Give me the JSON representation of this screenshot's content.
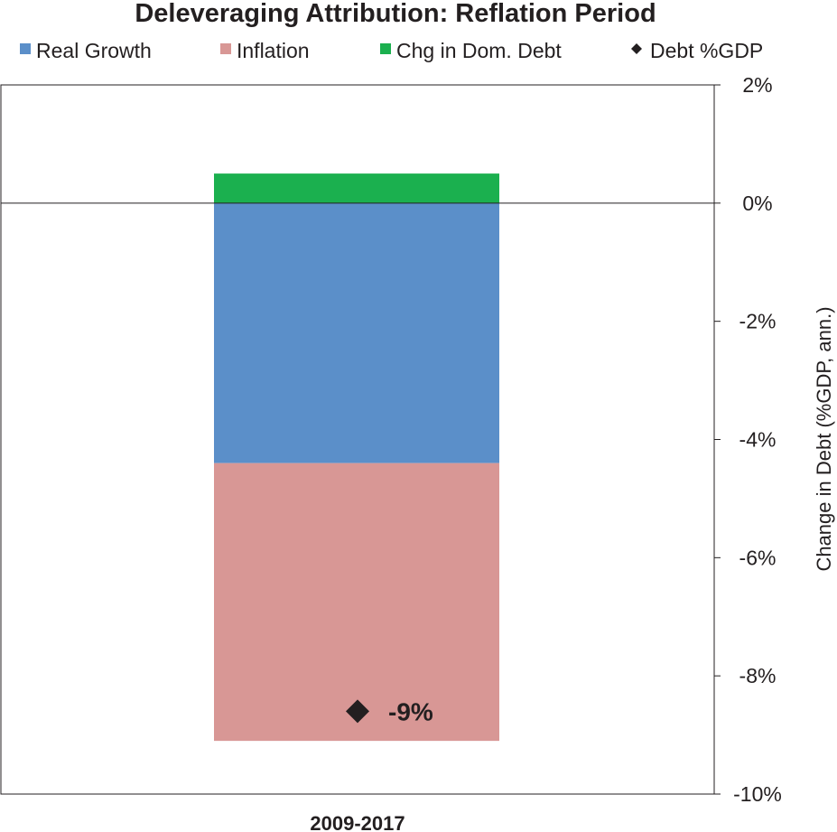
{
  "chart_data": {
    "type": "bar",
    "stacked": true,
    "title": "Deleveraging Attribution: Reflation Period",
    "categories": [
      "2009-2017"
    ],
    "ylabel": "Change in Debt (%GDP, ann.)",
    "ylim": [
      -10,
      2
    ],
    "yticks": [
      2,
      0,
      -2,
      -4,
      -6,
      -8,
      -10
    ],
    "ytick_labels": [
      "2%",
      "0%",
      "-2%",
      "-4%",
      "-6%",
      "-8%",
      "-10%"
    ],
    "y_axis_side": "right",
    "grid": false,
    "legend_position": "top",
    "series": [
      {
        "name": "Real Growth",
        "values": [
          -4.4
        ],
        "color": "#5b8fc9"
      },
      {
        "name": "Inflation",
        "values": [
          -4.7
        ],
        "color": "#d89795"
      },
      {
        "name": "Chg in Dom. Debt",
        "values": [
          0.5
        ],
        "color": "#1bb04f"
      }
    ],
    "markers": [
      {
        "name": "Debt %GDP",
        "values": [
          -8.6
        ],
        "label": "-9%",
        "shape": "diamond",
        "color": "#231f20"
      }
    ]
  }
}
